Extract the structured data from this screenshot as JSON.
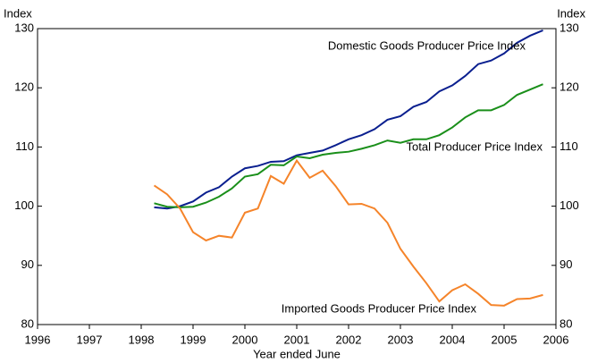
{
  "chart_data": {
    "type": "line",
    "y_label": "Index",
    "y2_label": "Index",
    "x_label": "Year ended June",
    "x": [
      1998.25,
      1998.5,
      1998.75,
      1999,
      1999.25,
      1999.5,
      1999.75,
      2000,
      2000.25,
      2000.5,
      2000.75,
      2001,
      2001.25,
      2001.5,
      2001.75,
      2002,
      2002.25,
      2002.5,
      2002.75,
      2003,
      2003.25,
      2003.5,
      2003.75,
      2004,
      2004.25,
      2004.5,
      2004.75,
      2005,
      2005.25,
      2005.5,
      2005.75
    ],
    "series": [
      {
        "name": "Domestic Goods Producer Price Index",
        "color": "#0a1f8f",
        "values": [
          99.8,
          99.6,
          100.0,
          100.8,
          102.3,
          103.2,
          105.0,
          106.4,
          106.8,
          107.5,
          107.6,
          108.6,
          109.0,
          109.4,
          110.3,
          111.3,
          112.0,
          113.0,
          114.6,
          115.2,
          116.8,
          117.6,
          119.4,
          120.4,
          122.0,
          124.0,
          124.6,
          125.8,
          127.6,
          128.8,
          129.7
        ]
      },
      {
        "name": "Total Producer Price Index",
        "color": "#1a8f1a",
        "values": [
          100.5,
          99.9,
          99.8,
          99.9,
          100.6,
          101.6,
          103.0,
          105.0,
          105.4,
          107.0,
          106.9,
          108.4,
          108.1,
          108.7,
          109.0,
          109.2,
          109.7,
          110.3,
          111.1,
          110.7,
          111.3,
          111.3,
          112.0,
          113.3,
          115.0,
          116.2,
          116.2,
          117.1,
          118.8,
          119.7,
          120.6
        ]
      },
      {
        "name": "Imported Goods Producer Price Index",
        "color": "#f5842a",
        "values": [
          103.5,
          102.0,
          99.6,
          95.6,
          94.2,
          95.0,
          94.7,
          98.9,
          99.6,
          105.1,
          103.8,
          107.7,
          104.8,
          106.0,
          103.4,
          100.3,
          100.4,
          99.6,
          97.2,
          92.8,
          89.8,
          87.0,
          83.9,
          85.8,
          86.8,
          85.2,
          83.3,
          83.2,
          84.3,
          84.4,
          85.0
        ]
      }
    ],
    "xlim": [
      1996,
      2006
    ],
    "xticks": [
      1996,
      1997,
      1998,
      1999,
      2000,
      2001,
      2002,
      2003,
      2004,
      2005,
      2006
    ],
    "ylim": [
      80,
      130
    ],
    "yticks": [
      80,
      90,
      100,
      110,
      120,
      130
    ],
    "y2lim": [
      80,
      130
    ],
    "y2ticks": [
      80,
      90,
      100,
      110,
      120,
      130
    ],
    "grid": false
  }
}
